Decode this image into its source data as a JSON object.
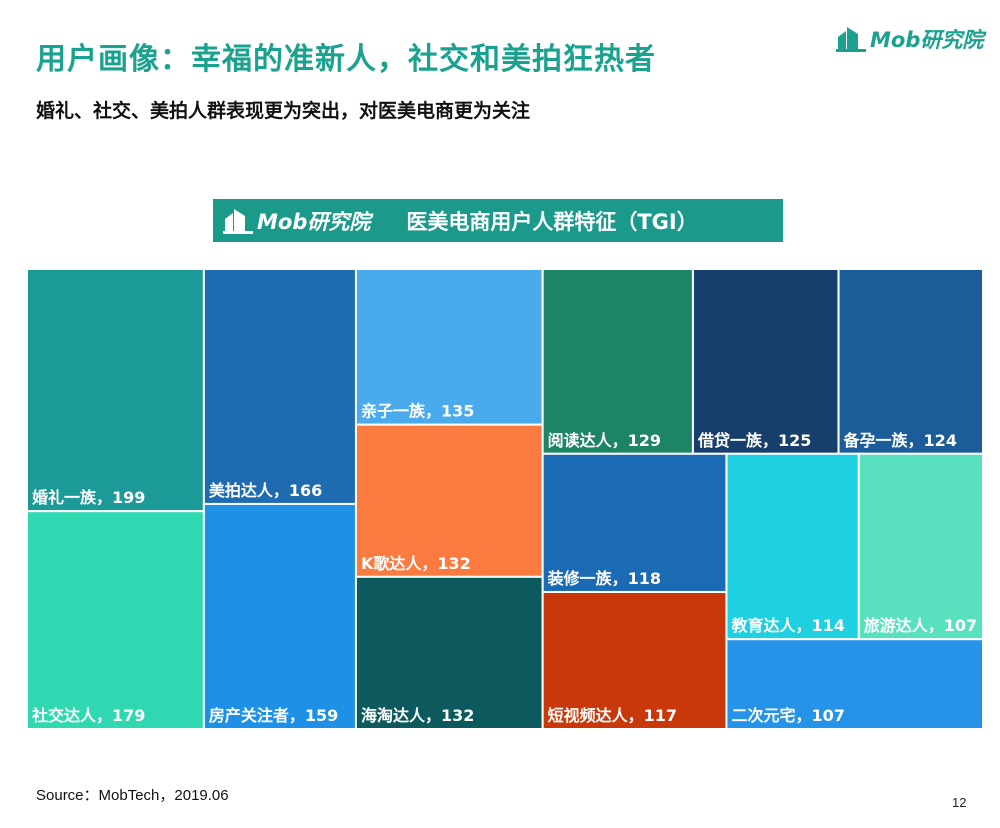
{
  "page": {
    "title": "用户画像：幸福的准新人，社交和美拍狂热者",
    "subtitle": "婚礼、社交、美拍人群表现更为突出，对医美电商更为关注",
    "logo_text": "Mob研究院",
    "source": "Source：MobTech，2019.06",
    "page_number": "12"
  },
  "colors": {
    "brand": "#1aa28f",
    "banner": "#1b9a8c"
  },
  "chart_data": {
    "type": "treemap",
    "title": "医美电商用户人群特征（TGI）",
    "logo_text": "Mob研究院",
    "label_separator": "，",
    "items": [
      {
        "name": "婚礼一族",
        "value": 199,
        "color": "#1b9a98"
      },
      {
        "name": "社交达人",
        "value": 179,
        "color": "#2fd8b0"
      },
      {
        "name": "美拍达人",
        "value": 166,
        "color": "#1f6bb0"
      },
      {
        "name": "房产关注者",
        "value": 159,
        "color": "#1e90e6"
      },
      {
        "name": "亲子一族",
        "value": 135,
        "color": "#4aabec"
      },
      {
        "name": "K歌达人",
        "value": 132,
        "color": "#fb7a40"
      },
      {
        "name": "海淘达人",
        "value": 132,
        "color": "#0d5a5e"
      },
      {
        "name": "阅读达人",
        "value": 129,
        "color": "#1e8466"
      },
      {
        "name": "借贷一族",
        "value": 125,
        "color": "#163f6b"
      },
      {
        "name": "备孕一族",
        "value": 124,
        "color": "#1a5d98"
      },
      {
        "name": "装修一族",
        "value": 118,
        "color": "#1a6bb4"
      },
      {
        "name": "短视频达人",
        "value": 117,
        "color": "#c8380a"
      },
      {
        "name": "教育达人",
        "value": 114,
        "color": "#1ed0e0"
      },
      {
        "name": "旅游达人",
        "value": 107,
        "color": "#58e0bf"
      },
      {
        "name": "二次元宅",
        "value": 107,
        "color": "#2593e8"
      }
    ]
  }
}
